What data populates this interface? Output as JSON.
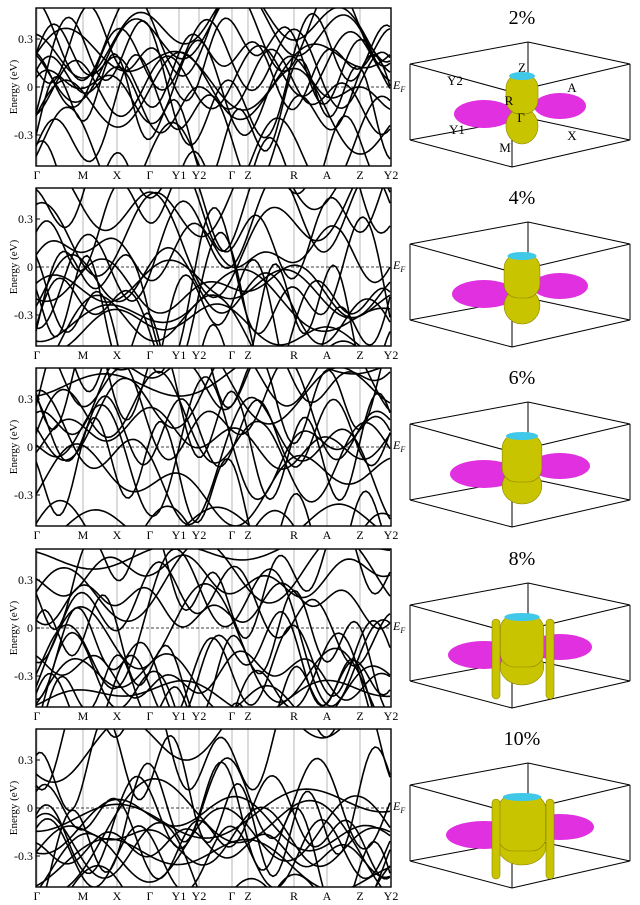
{
  "figure": {
    "y_axis_label": "Energy (eV)",
    "y_ticks": [
      "0.3",
      "0",
      "-0.3"
    ],
    "fermi_label_main": "E",
    "fermi_label_sub": "F",
    "k_labels": [
      "Γ",
      "M",
      "X",
      "Γ",
      "Y1",
      "Y2",
      "Γ",
      "Z",
      "R",
      "A",
      "Z",
      "Y2"
    ],
    "bz_labels": [
      "Z",
      "Y2",
      "A",
      "R",
      "Y1",
      "Γ",
      "X",
      "M"
    ],
    "panels": [
      {
        "strain": "2%",
        "show_bz_labels": true
      },
      {
        "strain": "4%",
        "show_bz_labels": false
      },
      {
        "strain": "6%",
        "show_bz_labels": false
      },
      {
        "strain": "8%",
        "show_bz_labels": false
      },
      {
        "strain": "10%",
        "show_bz_labels": false
      }
    ],
    "colors": {
      "bands": "#000000",
      "electron_pocket": "#c9c400",
      "hole_pocket": "#e030e0",
      "cap": "#40c8e8"
    }
  }
}
